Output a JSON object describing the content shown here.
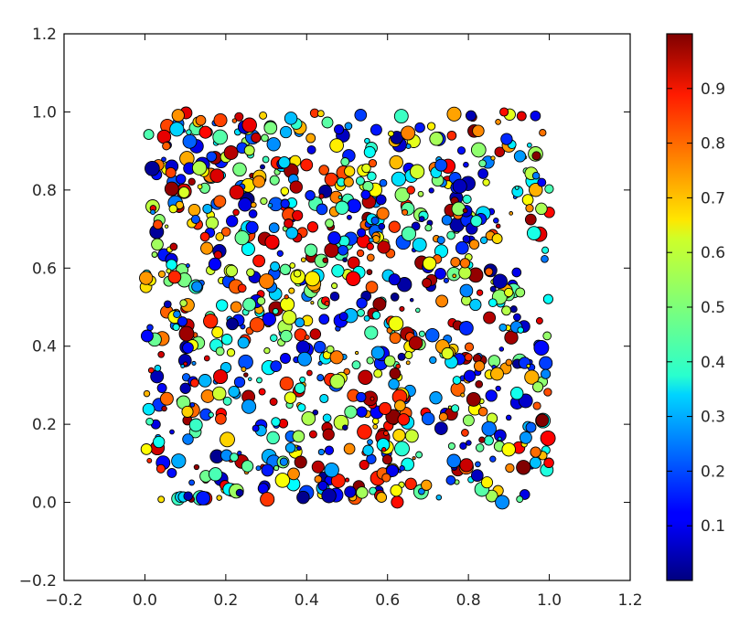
{
  "chart_data": {
    "type": "scatter",
    "title": "",
    "xlabel": "",
    "ylabel": "",
    "xlim": [
      -0.2,
      1.2
    ],
    "ylim": [
      -0.2,
      1.2
    ],
    "x_ticks": [
      "−0.2",
      "0.0",
      "0.2",
      "0.4",
      "0.6",
      "0.8",
      "1.0",
      "1.2"
    ],
    "y_ticks": [
      "−0.2",
      "0.0",
      "0.2",
      "0.4",
      "0.6",
      "0.8",
      "1.0",
      "1.2"
    ],
    "grid": false,
    "colormap": "jet",
    "colorbar": {
      "range": [
        0,
        1
      ],
      "ticks": [
        "0.1",
        "0.2",
        "0.3",
        "0.4",
        "0.5",
        "0.6",
        "0.7",
        "0.8",
        "0.9"
      ]
    },
    "points": {
      "count": 1000,
      "x_range": [
        0,
        1
      ],
      "y_range": [
        0,
        1
      ],
      "color_range": [
        0,
        1
      ],
      "distribution": "uniform random"
    }
  }
}
